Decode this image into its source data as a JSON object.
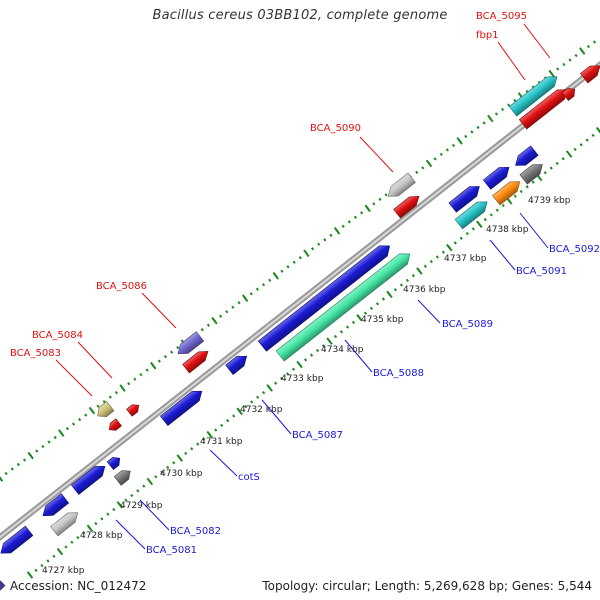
{
  "title": "Bacillus cereus 03BB102, complete genome",
  "footer": {
    "accession": "Accession: NC_012472",
    "stats": "Topology: circular; Length: 5,269,628 bp; Genes: 5,544"
  },
  "colors": {
    "blue": "#1a1ad6",
    "red": "#e01010",
    "cyan": "#27c4c8",
    "mint": "#45e8a6",
    "gray": "#c8c8c8",
    "darkgray": "#777777",
    "purple": "#7065d0",
    "orange": "#ff8c10",
    "khaki": "#cfc57a",
    "tick": "#1f8a1f"
  },
  "ticks": [
    {
      "label": "4727 kbp"
    },
    {
      "label": "4728 kbp"
    },
    {
      "label": "4729 kbp"
    },
    {
      "label": "4730 kbp"
    },
    {
      "label": "4731 kbp"
    },
    {
      "label": "4732 kbp"
    },
    {
      "label": "4733 kbp"
    },
    {
      "label": "4734 kbp"
    },
    {
      "label": "4735 kbp"
    },
    {
      "label": "4736 kbp"
    },
    {
      "label": "4737 kbp"
    },
    {
      "label": "4738 kbp"
    },
    {
      "label": "4739 kbp"
    }
  ],
  "gene_labels": [
    {
      "label": "BCA_5095",
      "color": "red"
    },
    {
      "label": "fbp1",
      "color": "red"
    },
    {
      "label": "BCA_5090",
      "color": "red"
    },
    {
      "label": "BCA_5086",
      "color": "red"
    },
    {
      "label": "BCA_5084",
      "color": "red"
    },
    {
      "label": "BCA_5083",
      "color": "red"
    },
    {
      "label": "BCA_5092",
      "color": "blue"
    },
    {
      "label": "BCA_5091",
      "color": "blue"
    },
    {
      "label": "BCA_5089",
      "color": "blue"
    },
    {
      "label": "BCA_5088",
      "color": "blue"
    },
    {
      "label": "BCA_5087",
      "color": "blue"
    },
    {
      "label": "cotS",
      "color": "blue"
    },
    {
      "label": "BCA_5082",
      "color": "blue"
    },
    {
      "label": "BCA_5081",
      "color": "blue"
    }
  ]
}
